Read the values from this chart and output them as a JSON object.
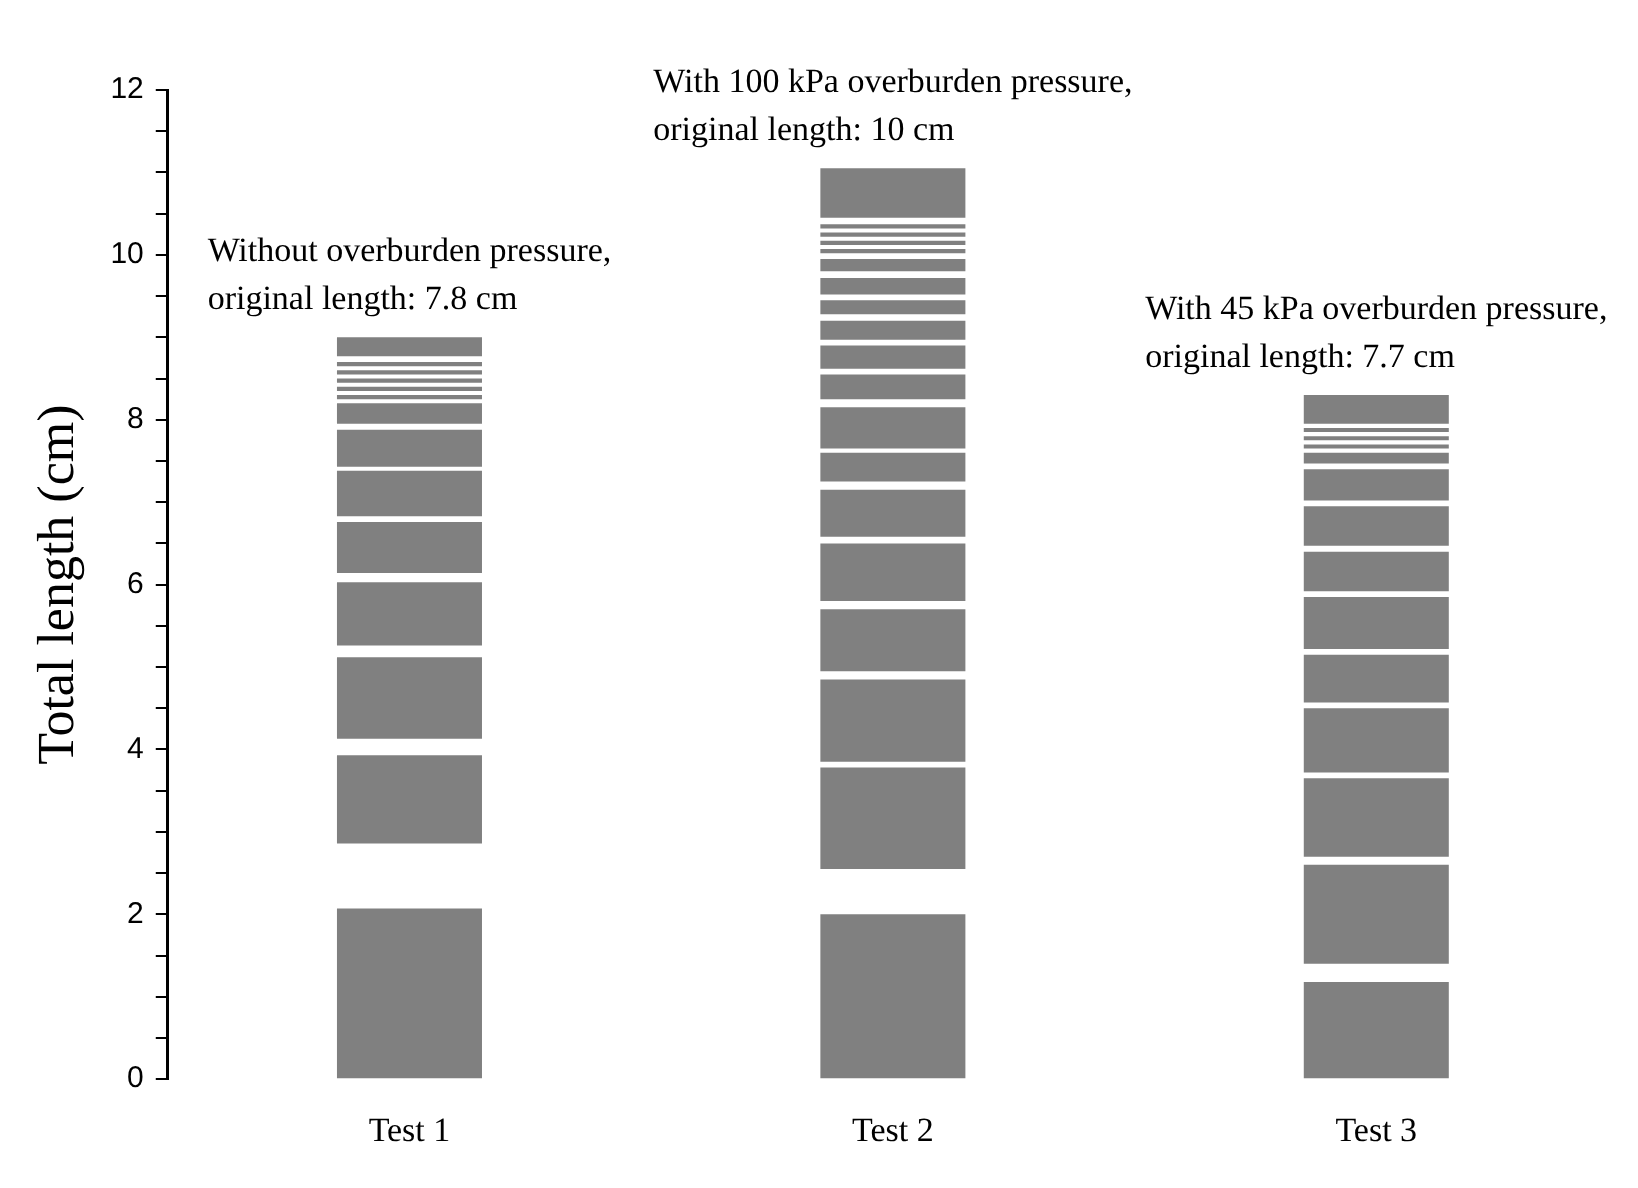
{
  "chart_data": {
    "type": "bar",
    "categories": [
      "Test 1",
      "Test 2",
      "Test 3"
    ],
    "ylabel": "Total length (cm)",
    "ylim": [
      0,
      12
    ],
    "yticks": [
      0,
      {
        "value": 0.5,
        "label": null
      },
      {
        "value": 1,
        "label": null
      },
      {
        "value": 1.5,
        "label": null
      },
      2,
      {
        "value": 2.5,
        "label": null
      },
      {
        "value": 3,
        "label": null
      },
      {
        "value": 3.5,
        "label": null
      },
      4,
      {
        "value": 4.5,
        "label": null
      },
      {
        "value": 5,
        "label": null
      },
      {
        "value": 5.5,
        "label": null
      },
      6,
      {
        "value": 6.5,
        "label": null
      },
      {
        "value": 7,
        "label": null
      },
      {
        "value": 7.5,
        "label": null
      },
      8,
      {
        "value": 8.5,
        "label": null
      },
      {
        "value": 9,
        "label": null
      },
      {
        "value": 9.5,
        "label": null
      },
      10,
      {
        "value": 10.5,
        "label": null
      },
      {
        "value": 11,
        "label": null
      },
      {
        "value": 11.5,
        "label": null
      },
      12
    ],
    "grid": false,
    "legend": false,
    "annotations": [
      {
        "text": "Without overburden pressure,\noriginal length: 7.8 cm",
        "x": "Test 1",
        "y": 9.0
      },
      {
        "text": "With 100 kPa overburden pressure,\noriginal length: 10 cm",
        "x": "Test 2",
        "y": 11.05
      },
      {
        "text": "With 45 kPa overburden pressure,\noriginal length: 7.7 cm",
        "x": "Test 3",
        "y": 8.3
      }
    ],
    "series": [
      {
        "color": "#808080",
        "base": [
          0,
          0,
          0
        ],
        "values": [
          2.07,
          2.0,
          1.18
        ]
      },
      {
        "color": "#808080",
        "base": [
          2.86,
          2.55,
          1.4
        ],
        "values": [
          1.07,
          1.23,
          1.2
        ]
      },
      {
        "color": "#808080",
        "base": [
          4.13,
          3.85,
          2.7
        ],
        "values": [
          0.99,
          1.0,
          0.95
        ]
      },
      {
        "color": "#808080",
        "base": [
          5.26,
          4.95,
          3.72
        ],
        "values": [
          0.77,
          0.75,
          0.78
        ]
      },
      {
        "color": "#808080",
        "base": [
          6.14,
          5.8,
          4.57
        ],
        "values": [
          0.62,
          0.7,
          0.58
        ]
      },
      {
        "color": "#808080",
        "base": [
          6.83,
          6.58,
          5.22
        ],
        "values": [
          0.55,
          0.57,
          0.63
        ]
      },
      {
        "color": "#808080",
        "base": [
          7.43,
          7.25,
          5.92
        ],
        "values": [
          0.45,
          0.35,
          0.48
        ]
      },
      {
        "color": "#808080",
        "base": [
          7.95,
          7.65,
          6.47
        ],
        "values": [
          0.25,
          0.5,
          0.48
        ]
      },
      {
        "color": "#808080",
        "base": [
          8.25,
          8.25,
          7.02
        ],
        "values": [
          0.05,
          0.3,
          0.38
        ]
      },
      {
        "color": "#808080",
        "base": [
          8.35,
          8.62,
          7.47
        ],
        "values": [
          0.05,
          0.28,
          0.13
        ]
      },
      {
        "color": "#808080",
        "base": [
          8.45,
          8.97,
          7.65
        ],
        "values": [
          0.05,
          0.23,
          0.05
        ]
      },
      {
        "color": "#808080",
        "base": [
          8.55,
          9.28,
          7.75
        ],
        "values": [
          0.05,
          0.17,
          0.05
        ]
      },
      {
        "color": "#808080",
        "base": [
          8.65,
          9.52,
          7.85
        ],
        "values": [
          0.05,
          0.2,
          0.05
        ]
      },
      {
        "color": "#808080",
        "base": [
          8.77,
          9.8,
          7.95
        ],
        "values": [
          0.23,
          0.15,
          0.35
        ]
      },
      {
        "color": "#808080",
        "base": [
          null,
          10.02,
          null
        ],
        "values": [
          null,
          0.05,
          null
        ]
      },
      {
        "color": "#808080",
        "base": [
          null,
          10.12,
          null
        ],
        "values": [
          null,
          0.05,
          null
        ]
      },
      {
        "color": "#808080",
        "base": [
          null,
          10.22,
          null
        ],
        "values": [
          null,
          0.05,
          null
        ]
      },
      {
        "color": "#808080",
        "base": [
          null,
          10.32,
          null
        ],
        "values": [
          null,
          0.05,
          null
        ]
      },
      {
        "color": "#808080",
        "base": [
          null,
          10.45,
          null
        ],
        "values": [
          null,
          0.6,
          null
        ]
      }
    ]
  }
}
